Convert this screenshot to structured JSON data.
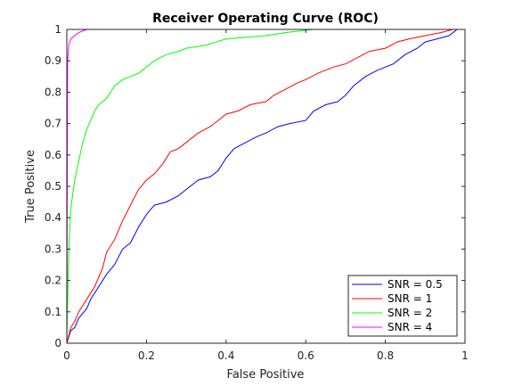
{
  "chart_data": {
    "type": "line",
    "title": "Receiver Operating Curve (ROC)",
    "xlabel": "False Positive",
    "ylabel": "True Positive",
    "xlim": [
      0,
      1
    ],
    "ylim": [
      0,
      1
    ],
    "xticks": [
      "0",
      "0.2",
      "0.4",
      "0.6",
      "0.8",
      "1"
    ],
    "yticks": [
      "0",
      "0.1",
      "0.2",
      "0.3",
      "0.4",
      "0.5",
      "0.6",
      "0.7",
      "0.8",
      "0.9",
      "1"
    ],
    "grid": false,
    "legend_position": "bottom-right",
    "series": [
      {
        "name": "SNR = 0.5",
        "color": "#0000ff",
        "points": [
          [
            0,
            0
          ],
          [
            0.01,
            0.04
          ],
          [
            0.02,
            0.05
          ],
          [
            0.03,
            0.08
          ],
          [
            0.05,
            0.11
          ],
          [
            0.06,
            0.14
          ],
          [
            0.08,
            0.18
          ],
          [
            0.1,
            0.22
          ],
          [
            0.12,
            0.25
          ],
          [
            0.14,
            0.3
          ],
          [
            0.16,
            0.32
          ],
          [
            0.18,
            0.37
          ],
          [
            0.2,
            0.41
          ],
          [
            0.22,
            0.44
          ],
          [
            0.25,
            0.45
          ],
          [
            0.28,
            0.47
          ],
          [
            0.3,
            0.49
          ],
          [
            0.33,
            0.52
          ],
          [
            0.36,
            0.53
          ],
          [
            0.38,
            0.55
          ],
          [
            0.4,
            0.59
          ],
          [
            0.42,
            0.62
          ],
          [
            0.45,
            0.64
          ],
          [
            0.48,
            0.66
          ],
          [
            0.5,
            0.67
          ],
          [
            0.53,
            0.69
          ],
          [
            0.56,
            0.7
          ],
          [
            0.6,
            0.71
          ],
          [
            0.62,
            0.74
          ],
          [
            0.65,
            0.76
          ],
          [
            0.68,
            0.77
          ],
          [
            0.7,
            0.79
          ],
          [
            0.72,
            0.82
          ],
          [
            0.75,
            0.85
          ],
          [
            0.78,
            0.87
          ],
          [
            0.82,
            0.89
          ],
          [
            0.85,
            0.92
          ],
          [
            0.88,
            0.94
          ],
          [
            0.9,
            0.96
          ],
          [
            0.93,
            0.97
          ],
          [
            0.96,
            0.98
          ],
          [
            0.98,
            1.0
          ],
          [
            1.0,
            1.0
          ]
        ]
      },
      {
        "name": "SNR = 1",
        "color": "#ff0000",
        "points": [
          [
            0,
            0
          ],
          [
            0.01,
            0.05
          ],
          [
            0.02,
            0.07
          ],
          [
            0.03,
            0.1
          ],
          [
            0.05,
            0.14
          ],
          [
            0.07,
            0.18
          ],
          [
            0.09,
            0.24
          ],
          [
            0.1,
            0.29
          ],
          [
            0.12,
            0.33
          ],
          [
            0.14,
            0.39
          ],
          [
            0.16,
            0.44
          ],
          [
            0.18,
            0.49
          ],
          [
            0.2,
            0.52
          ],
          [
            0.22,
            0.54
          ],
          [
            0.24,
            0.57
          ],
          [
            0.26,
            0.61
          ],
          [
            0.28,
            0.62
          ],
          [
            0.3,
            0.64
          ],
          [
            0.33,
            0.67
          ],
          [
            0.36,
            0.69
          ],
          [
            0.38,
            0.71
          ],
          [
            0.4,
            0.73
          ],
          [
            0.43,
            0.74
          ],
          [
            0.46,
            0.76
          ],
          [
            0.5,
            0.77
          ],
          [
            0.52,
            0.79
          ],
          [
            0.55,
            0.81
          ],
          [
            0.58,
            0.83
          ],
          [
            0.6,
            0.84
          ],
          [
            0.63,
            0.86
          ],
          [
            0.67,
            0.88
          ],
          [
            0.7,
            0.89
          ],
          [
            0.73,
            0.91
          ],
          [
            0.76,
            0.93
          ],
          [
            0.8,
            0.94
          ],
          [
            0.83,
            0.96
          ],
          [
            0.86,
            0.97
          ],
          [
            0.9,
            0.98
          ],
          [
            0.94,
            0.99
          ],
          [
            0.97,
            1.0
          ],
          [
            1.0,
            1.0
          ]
        ]
      },
      {
        "name": "SNR = 2",
        "color": "#00ff00",
        "points": [
          [
            0,
            0
          ],
          [
            0.003,
            0.2
          ],
          [
            0.006,
            0.33
          ],
          [
            0.01,
            0.43
          ],
          [
            0.02,
            0.52
          ],
          [
            0.03,
            0.58
          ],
          [
            0.04,
            0.64
          ],
          [
            0.05,
            0.68
          ],
          [
            0.06,
            0.71
          ],
          [
            0.07,
            0.74
          ],
          [
            0.08,
            0.76
          ],
          [
            0.1,
            0.78
          ],
          [
            0.12,
            0.82
          ],
          [
            0.14,
            0.84
          ],
          [
            0.16,
            0.85
          ],
          [
            0.18,
            0.86
          ],
          [
            0.2,
            0.88
          ],
          [
            0.22,
            0.9
          ],
          [
            0.25,
            0.92
          ],
          [
            0.28,
            0.93
          ],
          [
            0.3,
            0.94
          ],
          [
            0.35,
            0.95
          ],
          [
            0.4,
            0.97
          ],
          [
            0.5,
            0.98
          ],
          [
            0.55,
            0.99
          ],
          [
            0.62,
            1.0
          ],
          [
            0.75,
            1.0
          ],
          [
            1.0,
            1.0
          ]
        ]
      },
      {
        "name": "SNR = 4",
        "color": "#ff00ff",
        "points": [
          [
            0,
            0
          ],
          [
            0.002,
            0.9
          ],
          [
            0.005,
            0.95
          ],
          [
            0.01,
            0.97
          ],
          [
            0.02,
            0.98
          ],
          [
            0.03,
            0.99
          ],
          [
            0.05,
            1.0
          ],
          [
            1.0,
            1.0
          ]
        ]
      }
    ]
  }
}
